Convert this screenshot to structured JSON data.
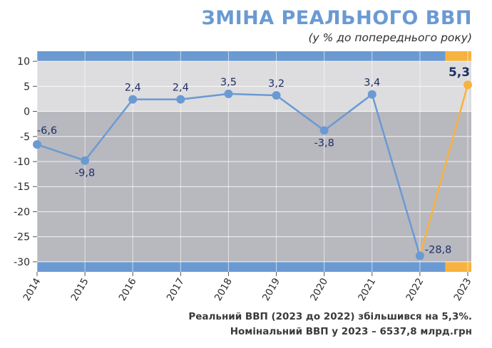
{
  "header": {
    "title": "ЗМІНА РЕАЛЬНОГО ВВП",
    "subtitle": "(у % до попереднього року)"
  },
  "footnotes": {
    "line1": "Реальний ВВП (2023 до 2022) збільшився на 5,3%.",
    "line2": "Номінальний ВВП у 2023 – 6537,8 млрд.грн"
  },
  "chart_data": {
    "type": "line",
    "title": "ЗМІНА РЕАЛЬНОГО ВВП",
    "subtitle": "(у % до попереднього року)",
    "categories": [
      "2014",
      "2015",
      "2016",
      "2017",
      "2018",
      "2019",
      "2020",
      "2021",
      "2022",
      "2023"
    ],
    "values": [
      -6.6,
      -9.8,
      2.4,
      2.4,
      3.5,
      3.2,
      -3.8,
      3.4,
      -28.8,
      5.3
    ],
    "data_labels": [
      "-6,6",
      "-9,8",
      "2,4",
      "2,4",
      "3,5",
      "3,2",
      "-3,8",
      "3,4",
      "-28,8",
      "5,3"
    ],
    "highlight_index": 9,
    "ylim": [
      -32,
      12
    ],
    "yticks": [
      10,
      5,
      0,
      -5,
      -10,
      -15,
      -20,
      -25,
      -30
    ],
    "ytick_labels": [
      "10",
      "5",
      "0",
      "-5",
      "-10",
      "-15",
      "-20",
      "-25",
      "-30"
    ],
    "xlabel": "",
    "ylabel": "",
    "grid": true,
    "colors": {
      "series": "#6b9ad2",
      "highlight": "#f7b33f",
      "positive_band": "#dddddf",
      "negative_band": "#b8b8bf",
      "label": "#1f2e66"
    }
  }
}
